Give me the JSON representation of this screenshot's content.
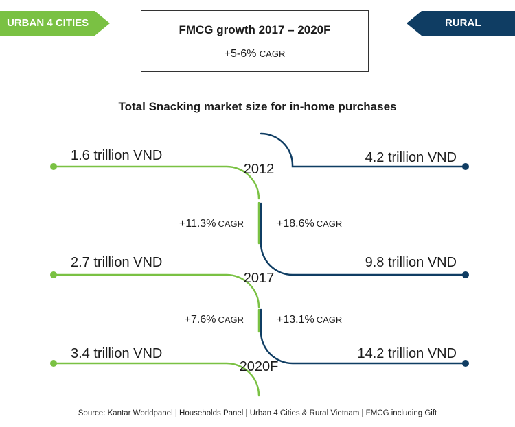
{
  "tags": {
    "urban": "URBAN 4 CITIES",
    "rural": "RURAL"
  },
  "headline": {
    "title": "FMCG growth  2017 – 2020F",
    "growth": "+5-6%",
    "cagr_label": "CAGR"
  },
  "section_title": "Total Snacking market size for in-home purchases",
  "colors": {
    "urban": "#7ac143",
    "rural": "#0f3d63",
    "text": "#1b1b1b"
  },
  "years": [
    {
      "label": "2012",
      "urban": "1.6 trillion VND",
      "rural": "4.2 trillion VND"
    },
    {
      "label": "2017",
      "urban": "2.7 trillion VND",
      "rural": "9.8 trillion VND"
    },
    {
      "label": "2020F",
      "urban": "3.4 trillion VND",
      "rural": "14.2 trillion VND"
    }
  ],
  "growth": [
    {
      "urban_value": "+11.3%",
      "rural_value": "+18.6%",
      "label": "CAGR"
    },
    {
      "urban_value": "+7.6%",
      "rural_value": "+13.1%",
      "label": "CAGR"
    }
  ],
  "source": "Source: Kantar Worldpanel | Households Panel | Urban 4 Cities & Rural Vietnam | FMCG including Gift"
}
